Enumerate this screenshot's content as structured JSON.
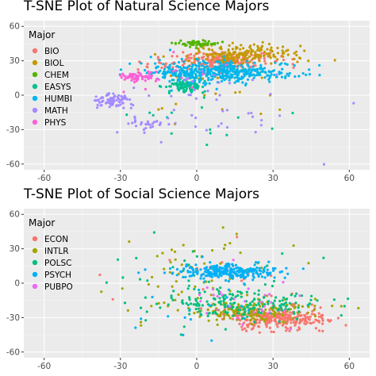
{
  "chart_data": [
    {
      "type": "scatter",
      "title": "T-SNE Plot of Natural Science Majors",
      "xlabel": "",
      "ylabel": "",
      "xlim": [
        -68,
        68
      ],
      "ylim": [
        -65,
        65
      ],
      "x_ticks": [
        -60,
        -30,
        0,
        30,
        60
      ],
      "y_ticks": [
        -60,
        -30,
        0,
        30,
        60
      ],
      "grid": true,
      "legend_title": "Major",
      "legend_placement": "top-left",
      "series": [
        {
          "name": "BIO",
          "color": "#F8766D",
          "clusters": [
            {
              "cx": 10,
              "cy": 30,
              "sx": 9,
              "sy": 4,
              "n": 220
            },
            {
              "cx": -13,
              "cy": 27,
              "sx": 6,
              "sy": 3,
              "n": 20
            }
          ]
        },
        {
          "name": "BIOL",
          "color": "#C49A00",
          "clusters": [
            {
              "cx": 20,
              "cy": 36,
              "sx": 11,
              "sy": 4,
              "n": 190
            },
            {
              "cx": 10,
              "cy": 10,
              "sx": 18,
              "sy": 16,
              "n": 30
            }
          ]
        },
        {
          "name": "CHEM",
          "color": "#53B400",
          "clusters": [
            {
              "cx": 0,
              "cy": 45,
              "sx": 4,
              "sy": 1.5,
              "n": 60
            }
          ]
        },
        {
          "name": "EASYS",
          "color": "#00C094",
          "clusters": [
            {
              "cx": -5,
              "cy": 8,
              "sx": 4,
              "sy": 3,
              "n": 90
            },
            {
              "cx": 5,
              "cy": -20,
              "sx": 15,
              "sy": 12,
              "n": 15
            }
          ]
        },
        {
          "name": "HUMBI",
          "color": "#00B6EB",
          "clusters": [
            {
              "cx": 10,
              "cy": 20,
              "sx": 14,
              "sy": 4.5,
              "n": 420
            },
            {
              "cx": -8,
              "cy": 25,
              "sx": 12,
              "sy": 10,
              "n": 25
            }
          ]
        },
        {
          "name": "MATH",
          "color": "#A58AFF",
          "clusters": [
            {
              "cx": -33,
              "cy": -5,
              "sx": 4,
              "sy": 3,
              "n": 80
            },
            {
              "cx": -20,
              "cy": -25,
              "sx": 4,
              "sy": 3,
              "n": 30
            },
            {
              "cx": 5,
              "cy": -5,
              "sx": 25,
              "sy": 20,
              "n": 45
            }
          ]
        },
        {
          "name": "PHYS",
          "color": "#FB61D7",
          "clusters": [
            {
              "cx": -23,
              "cy": 16,
              "sx": 3.5,
              "sy": 1.8,
              "n": 70
            },
            {
              "cx": -10,
              "cy": 20,
              "sx": 8,
              "sy": 8,
              "n": 10
            }
          ]
        }
      ]
    },
    {
      "type": "scatter",
      "title": "T-SNE Plot of Social Science Majors",
      "xlabel": "",
      "ylabel": "",
      "xlim": [
        -68,
        68
      ],
      "ylim": [
        -65,
        65
      ],
      "x_ticks": [
        -60,
        -30,
        0,
        30,
        60
      ],
      "y_ticks": [
        -60,
        -30,
        0,
        30,
        60
      ],
      "grid": true,
      "legend_title": "Major",
      "legend_placement": "top-left",
      "series": [
        {
          "name": "ECON",
          "color": "#F8766D",
          "clusters": [
            {
              "cx": 30,
              "cy": -30,
              "sx": 10,
              "sy": 5,
              "n": 320
            },
            {
              "cx": 10,
              "cy": 5,
              "sx": 20,
              "sy": 18,
              "n": 20
            }
          ]
        },
        {
          "name": "INTLR",
          "color": "#A3A500",
          "clusters": [
            {
              "cx": 20,
              "cy": -24,
              "sx": 14,
              "sy": 5,
              "n": 160
            },
            {
              "cx": 0,
              "cy": 10,
              "sx": 18,
              "sy": 18,
              "n": 60
            }
          ]
        },
        {
          "name": "POLSC",
          "color": "#00BF7D",
          "clusters": [
            {
              "cx": 18,
              "cy": -18,
              "sx": 15,
              "sy": 6,
              "n": 180
            },
            {
              "cx": 0,
              "cy": 0,
              "sx": 20,
              "sy": 20,
              "n": 40
            }
          ]
        },
        {
          "name": "PSYCH",
          "color": "#00B0F6",
          "clusters": [
            {
              "cx": 12,
              "cy": 10,
              "sx": 10,
              "sy": 3,
              "n": 260
            },
            {
              "cx": 5,
              "cy": -15,
              "sx": 15,
              "sy": 15,
              "n": 25
            }
          ]
        },
        {
          "name": "PUBPO",
          "color": "#E76BF3",
          "clusters": [
            {
              "cx": 20,
              "cy": -15,
              "sx": 15,
              "sy": 12,
              "n": 30
            }
          ]
        }
      ]
    }
  ]
}
